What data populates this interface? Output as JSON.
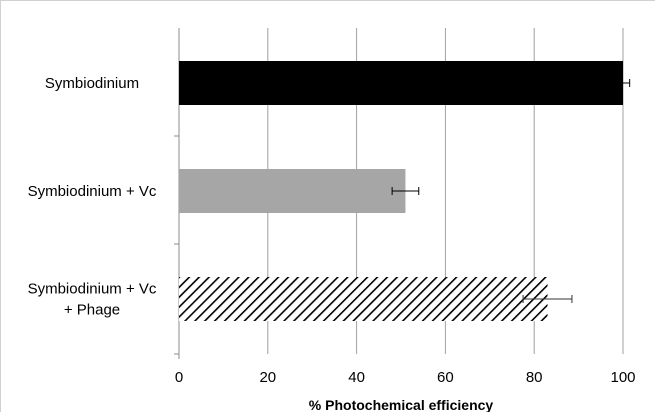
{
  "chart_data": {
    "type": "bar",
    "orientation": "horizontal",
    "categories": [
      [
        "Symbiodinium"
      ],
      [
        "Symbiodinium + Vc"
      ],
      [
        "Symbiodinium + Vc",
        "+ Phage"
      ]
    ],
    "values": [
      100,
      51,
      83
    ],
    "errors": [
      1.5,
      3,
      5.5
    ],
    "fills": [
      "solid-black",
      "solid-gray",
      "diagonal-hatch"
    ],
    "colors": {
      "black": "#000000",
      "gray": "#a6a6a6",
      "grid": "#a0a0a0",
      "axis": "#8c8c8c"
    },
    "xlabel": "% Photochemical efficiency",
    "xlim": [
      0,
      100
    ],
    "xticks": [
      0,
      20,
      40,
      60,
      80,
      100
    ],
    "grid": true
  }
}
